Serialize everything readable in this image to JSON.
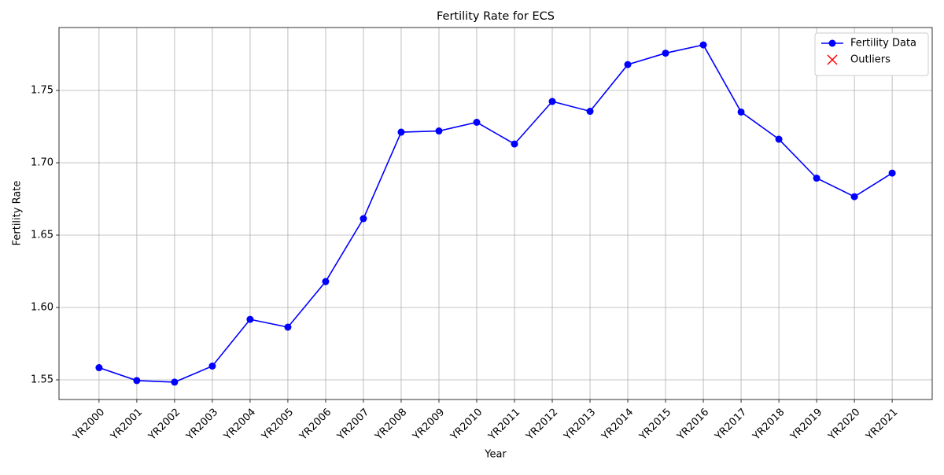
{
  "chart_data": {
    "type": "line",
    "title": "Fertility Rate for ECS",
    "xlabel": "Year",
    "ylabel": "Fertility Rate",
    "categories": [
      "YR2000",
      "YR2001",
      "YR2002",
      "YR2003",
      "YR2004",
      "YR2005",
      "YR2006",
      "YR2007",
      "YR2008",
      "YR2009",
      "YR2010",
      "YR2011",
      "YR2012",
      "YR2013",
      "YR2014",
      "YR2015",
      "YR2016",
      "YR2017",
      "YR2018",
      "YR2019",
      "YR2020",
      "YR2021"
    ],
    "series": [
      {
        "name": "Fertility Data",
        "color": "#0000ff",
        "marker": "o",
        "values": [
          1.5584,
          1.5495,
          1.5484,
          1.5595,
          1.5918,
          1.5864,
          1.6179,
          1.6614,
          1.7212,
          1.722,
          1.728,
          1.713,
          1.7424,
          1.7356,
          1.7679,
          1.7758,
          1.7815,
          1.7351,
          1.7163,
          1.6894,
          1.6766,
          1.6929
        ]
      },
      {
        "name": "Outliers",
        "color": "#ff0000",
        "marker": "x",
        "values": [
          null,
          null,
          null,
          null,
          null,
          null,
          null,
          null,
          null,
          null,
          null,
          null,
          null,
          null,
          null,
          null,
          null,
          null,
          null,
          null,
          null,
          null
        ]
      }
    ],
    "ylim": [
      1.5364,
      1.7935
    ],
    "yticks": [
      1.55,
      {
        "value": 1.6,
        "label": "1.60"
      },
      1.65,
      {
        "value": 1.7,
        "label": "1.70"
      },
      1.75
    ],
    "grid": true,
    "legend": "upper right"
  }
}
